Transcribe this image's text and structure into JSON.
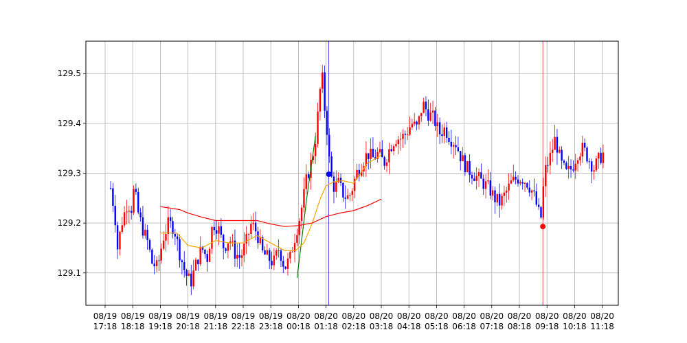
{
  "chart_data": {
    "type": "candlestick",
    "title": "",
    "xlabel": "",
    "ylabel": "",
    "ylim": [
      129.035,
      129.565
    ],
    "grid": true,
    "y_ticks": [
      129.1,
      129.2,
      129.3,
      129.4,
      129.5
    ],
    "y_tick_labels": [
      "129.1",
      "129.2",
      "129.3",
      "129.4",
      "129.5"
    ],
    "x_ticks": [
      {
        "line1": "08/19",
        "line2": "17:18"
      },
      {
        "line1": "08/19",
        "line2": "18:18"
      },
      {
        "line1": "08/19",
        "line2": "19:18"
      },
      {
        "line1": "08/19",
        "line2": "20:18"
      },
      {
        "line1": "08/19",
        "line2": "21:18"
      },
      {
        "line1": "08/19",
        "line2": "22:18"
      },
      {
        "line1": "08/19",
        "line2": "23:18"
      },
      {
        "line1": "08/20",
        "line2": "00:18"
      },
      {
        "line1": "08/20",
        "line2": "01:18"
      },
      {
        "line1": "08/20",
        "line2": "02:18"
      },
      {
        "line1": "08/20",
        "line2": "03:18"
      },
      {
        "line1": "08/20",
        "line2": "04:18"
      },
      {
        "line1": "08/20",
        "line2": "05:18"
      },
      {
        "line1": "08/20",
        "line2": "06:18"
      },
      {
        "line1": "08/20",
        "line2": "07:18"
      },
      {
        "line1": "08/20",
        "line2": "08:18"
      },
      {
        "line1": "08/20",
        "line2": "09:18"
      },
      {
        "line1": "08/20",
        "line2": "10:18"
      },
      {
        "line1": "08/20",
        "line2": "11:18"
      }
    ],
    "x_range_hours": [
      -0.7,
      18.6
    ],
    "price_path": [
      [
        0.2,
        129.27
      ],
      [
        0.35,
        129.22
      ],
      [
        0.45,
        129.15
      ],
      [
        0.6,
        129.2
      ],
      [
        0.8,
        129.24
      ],
      [
        0.95,
        129.23
      ],
      [
        1.05,
        129.27
      ],
      [
        1.2,
        129.22
      ],
      [
        1.35,
        129.19
      ],
      [
        1.55,
        129.16
      ],
      [
        1.7,
        129.12
      ],
      [
        1.9,
        129.11
      ],
      [
        2.1,
        129.17
      ],
      [
        2.3,
        129.2
      ],
      [
        2.5,
        129.19
      ],
      [
        2.7,
        129.14
      ],
      [
        2.9,
        129.1
      ],
      [
        3.1,
        129.08
      ],
      [
        3.3,
        129.12
      ],
      [
        3.5,
        129.15
      ],
      [
        3.7,
        129.13
      ],
      [
        3.9,
        129.2
      ],
      [
        4.1,
        129.19
      ],
      [
        4.3,
        129.15
      ],
      [
        4.5,
        129.17
      ],
      [
        4.7,
        129.14
      ],
      [
        4.9,
        129.13
      ],
      [
        5.1,
        129.16
      ],
      [
        5.3,
        129.2
      ],
      [
        5.5,
        129.18
      ],
      [
        5.7,
        129.14
      ],
      [
        5.9,
        129.13
      ],
      [
        6.1,
        129.12
      ],
      [
        6.3,
        129.15
      ],
      [
        6.5,
        129.11
      ],
      [
        6.7,
        129.13
      ],
      [
        6.9,
        129.18
      ],
      [
        7.0,
        129.2
      ],
      [
        7.15,
        129.24
      ],
      [
        7.3,
        129.29
      ],
      [
        7.5,
        129.33
      ],
      [
        7.65,
        129.38
      ],
      [
        7.75,
        129.45
      ],
      [
        7.85,
        129.5
      ],
      [
        7.95,
        129.43
      ],
      [
        8.05,
        129.38
      ],
      [
        8.15,
        129.3
      ],
      [
        8.3,
        129.27
      ],
      [
        8.45,
        129.28
      ],
      [
        8.6,
        129.26
      ],
      [
        8.75,
        129.25
      ],
      [
        8.9,
        129.26
      ],
      [
        9.1,
        129.3
      ],
      [
        9.3,
        129.32
      ],
      [
        9.5,
        129.34
      ],
      [
        9.7,
        129.33
      ],
      [
        9.9,
        129.34
      ],
      [
        10.1,
        129.32
      ],
      [
        10.3,
        129.35
      ],
      [
        10.5,
        129.37
      ],
      [
        10.7,
        129.37
      ],
      [
        10.9,
        129.38
      ],
      [
        11.1,
        129.4
      ],
      [
        11.3,
        129.39
      ],
      [
        11.5,
        129.44
      ],
      [
        11.7,
        129.42
      ],
      [
        11.9,
        129.41
      ],
      [
        12.1,
        129.38
      ],
      [
        12.3,
        129.39
      ],
      [
        12.5,
        129.37
      ],
      [
        12.7,
        129.36
      ],
      [
        12.9,
        129.33
      ],
      [
        13.1,
        129.31
      ],
      [
        13.3,
        129.3
      ],
      [
        13.5,
        129.29
      ],
      [
        13.7,
        129.28
      ],
      [
        13.9,
        129.27
      ],
      [
        14.1,
        129.25
      ],
      [
        14.3,
        129.24
      ],
      [
        14.5,
        129.26
      ],
      [
        14.7,
        129.28
      ],
      [
        14.9,
        129.29
      ],
      [
        15.1,
        129.29
      ],
      [
        15.3,
        129.28
      ],
      [
        15.5,
        129.26
      ],
      [
        15.7,
        129.22
      ],
      [
        15.8,
        129.21
      ],
      [
        15.9,
        129.3
      ],
      [
        16.1,
        129.33
      ],
      [
        16.3,
        129.37
      ],
      [
        16.5,
        129.32
      ],
      [
        16.7,
        129.3
      ],
      [
        16.9,
        129.31
      ],
      [
        17.1,
        129.34
      ],
      [
        17.3,
        129.35
      ],
      [
        17.5,
        129.33
      ],
      [
        17.7,
        129.31
      ],
      [
        17.9,
        129.33
      ],
      [
        18.05,
        129.34
      ]
    ],
    "series": [
      {
        "name": "trend-line-green",
        "color": "#008000",
        "x": [
          6.95,
          7.3,
          7.62
        ],
        "y": [
          129.09,
          129.25,
          129.375
        ]
      },
      {
        "name": "moving-average-orange",
        "color": "#FFA500",
        "x": [
          2.0,
          2.6,
          3.0,
          3.5,
          4.0,
          4.5,
          5.0,
          5.5,
          6.0,
          6.5,
          6.9,
          7.2,
          7.5,
          7.8,
          8.0,
          8.3,
          8.6,
          9.0,
          9.5,
          10.0
        ],
        "y": [
          129.18,
          129.18,
          129.155,
          129.15,
          129.165,
          129.16,
          129.16,
          129.175,
          129.16,
          129.145,
          129.145,
          129.16,
          129.2,
          129.25,
          129.275,
          129.283,
          129.285,
          129.28,
          129.32,
          129.336
        ]
      },
      {
        "name": "moving-average-red",
        "color": "#FF0000",
        "x": [
          2.0,
          2.7,
          3.0,
          3.5,
          4.0,
          4.5,
          5.0,
          5.5,
          6.0,
          6.5,
          7.0,
          7.5,
          8.0,
          8.5,
          9.0,
          9.5,
          10.0
        ],
        "y": [
          129.233,
          129.227,
          129.22,
          129.212,
          129.205,
          129.205,
          129.205,
          129.205,
          129.198,
          129.193,
          129.195,
          129.2,
          129.213,
          129.22,
          129.225,
          129.235,
          129.248
        ]
      }
    ],
    "markers": [
      {
        "name": "buy-marker",
        "color": "#0000FF",
        "x": 8.1,
        "y": 129.298
      },
      {
        "name": "sell-marker",
        "color": "#FF0000",
        "x": 15.85,
        "y": 129.193
      }
    ],
    "vertical_lines": [
      {
        "name": "entry-line",
        "color": "#0000FF",
        "x": 8.1
      },
      {
        "name": "exit-line",
        "color": "#FF0000",
        "x": 15.85
      }
    ],
    "candle_colors": {
      "up": "#FF0000",
      "down": "#0000FF"
    }
  }
}
